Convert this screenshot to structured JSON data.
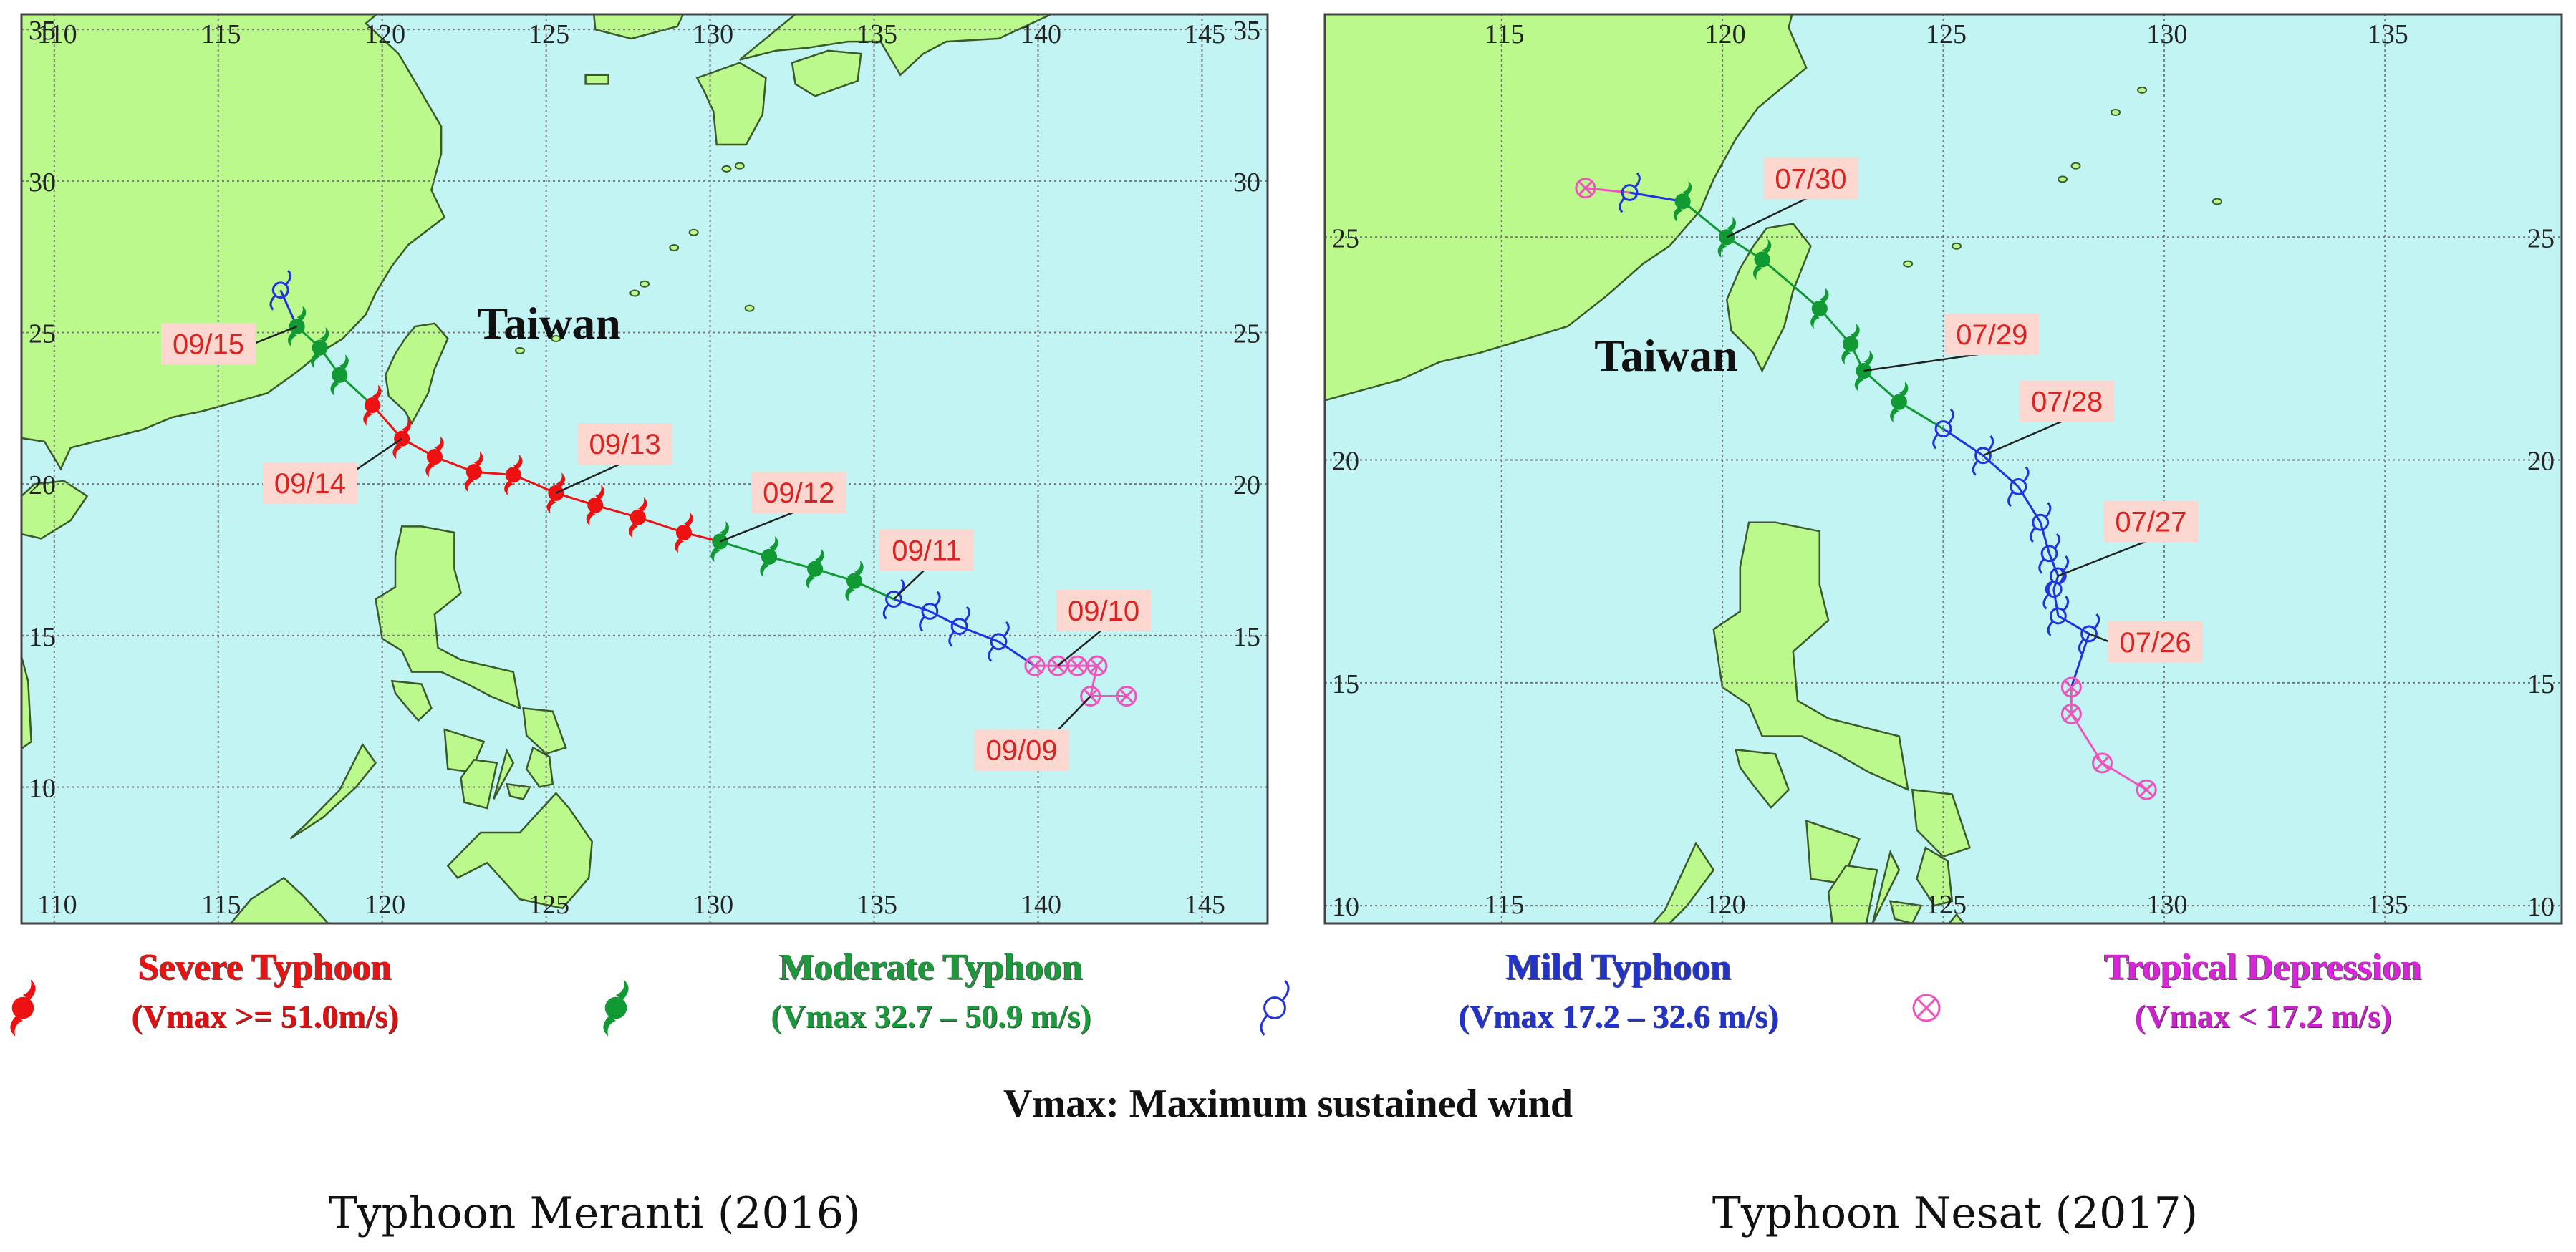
{
  "colors": {
    "sea": "#c2f4f4",
    "land": "#bbf98c",
    "coast": "#3a5a2a",
    "grid": "#777777",
    "severe": "#ee1111",
    "moderate": "#119933",
    "mild": "#2233dd",
    "depression": "#ee55bb",
    "date_label_bg": "#fbd7cf",
    "date_label_text": "#dd2222"
  },
  "legend": [
    {
      "key": "severe",
      "title": "Severe Typhoon",
      "subtitle": "(Vmax  >= 51.0m/s)",
      "title_color": "#ee1111",
      "sub_color": "#dd1111",
      "icon": "severe-typhoon-icon"
    },
    {
      "key": "moderate",
      "title": "Moderate Typhoon",
      "subtitle": "(Vmax  32.7 – 50.9 m/s)",
      "title_color": "#1a9a3a",
      "sub_color": "#1a9a3a",
      "icon": "moderate-typhoon-icon"
    },
    {
      "key": "mild",
      "title": "Mild Typhoon",
      "subtitle": "(Vmax  17.2 – 32.6 m/s)",
      "title_color": "#2233cc",
      "sub_color": "#2233cc",
      "icon": "mild-typhoon-icon"
    },
    {
      "key": "depression",
      "title": "Tropical Depression",
      "subtitle": "(Vmax  < 17.2 m/s)",
      "title_color": "#dd22dd",
      "sub_color": "#cc22cc",
      "icon": "tropical-depression-icon"
    }
  ],
  "note": "Vmax: Maximum sustained wind",
  "maps": [
    {
      "id": "meranti",
      "caption": "Typhoon Meranti (2016)",
      "place_label": "Taiwan",
      "lon_range": [
        109,
        147
      ],
      "lat_range": [
        5.5,
        35.5
      ],
      "lon_ticks": [
        110,
        115,
        120,
        125,
        130,
        135,
        140,
        145
      ],
      "lat_ticks": [
        10,
        15,
        20,
        25,
        30,
        35
      ],
      "tick_labels_left": [
        "10",
        "15",
        "20",
        "25",
        "30",
        "35"
      ],
      "tick_labels_right": [
        "15",
        "20",
        "25",
        "30",
        "35"
      ],
      "tick_labels_top": [
        "110",
        "115",
        "120",
        "125",
        "130",
        "135",
        "140",
        "145"
      ],
      "tick_labels_bottom": [
        "110",
        "115",
        "120",
        "125",
        "130",
        "135",
        "140",
        "145"
      ],
      "track": [
        {
          "lon": 142.7,
          "lat": 13.0,
          "cat": "depression"
        },
        {
          "lon": 141.6,
          "lat": 13.0,
          "cat": "depression"
        },
        {
          "lon": 141.8,
          "lat": 14.0,
          "cat": "depression"
        },
        {
          "lon": 141.2,
          "lat": 14.0,
          "cat": "depression"
        },
        {
          "lon": 140.6,
          "lat": 14.0,
          "cat": "depression"
        },
        {
          "lon": 139.9,
          "lat": 14.0,
          "cat": "depression"
        },
        {
          "lon": 138.8,
          "lat": 14.8,
          "cat": "mild"
        },
        {
          "lon": 137.6,
          "lat": 15.3,
          "cat": "mild"
        },
        {
          "lon": 136.7,
          "lat": 15.8,
          "cat": "mild"
        },
        {
          "lon": 135.6,
          "lat": 16.2,
          "cat": "mild"
        },
        {
          "lon": 134.4,
          "lat": 16.8,
          "cat": "moderate"
        },
        {
          "lon": 133.2,
          "lat": 17.2,
          "cat": "moderate"
        },
        {
          "lon": 131.8,
          "lat": 17.6,
          "cat": "moderate"
        },
        {
          "lon": 130.3,
          "lat": 18.1,
          "cat": "moderate"
        },
        {
          "lon": 129.2,
          "lat": 18.4,
          "cat": "severe"
        },
        {
          "lon": 127.8,
          "lat": 18.9,
          "cat": "severe"
        },
        {
          "lon": 126.5,
          "lat": 19.3,
          "cat": "severe"
        },
        {
          "lon": 125.3,
          "lat": 19.7,
          "cat": "severe"
        },
        {
          "lon": 124.0,
          "lat": 20.3,
          "cat": "severe"
        },
        {
          "lon": 122.8,
          "lat": 20.4,
          "cat": "severe"
        },
        {
          "lon": 121.6,
          "lat": 20.9,
          "cat": "severe"
        },
        {
          "lon": 120.6,
          "lat": 21.5,
          "cat": "severe"
        },
        {
          "lon": 119.7,
          "lat": 22.6,
          "cat": "severe"
        },
        {
          "lon": 118.7,
          "lat": 23.6,
          "cat": "moderate"
        },
        {
          "lon": 118.1,
          "lat": 24.5,
          "cat": "moderate"
        },
        {
          "lon": 117.4,
          "lat": 25.2,
          "cat": "moderate"
        },
        {
          "lon": 116.9,
          "lat": 26.4,
          "cat": "mild"
        }
      ],
      "date_labels": [
        {
          "text": "09/09",
          "lon": 139.5,
          "lat": 11.2,
          "anchor_lon": 141.6,
          "anchor_lat": 13.0
        },
        {
          "text": "09/10",
          "lon": 142.0,
          "lat": 15.8,
          "anchor_lon": 140.6,
          "anchor_lat": 14.0
        },
        {
          "text": "09/11",
          "lon": 136.6,
          "lat": 17.8,
          "anchor_lon": 135.6,
          "anchor_lat": 16.2
        },
        {
          "text": "09/12",
          "lon": 132.7,
          "lat": 19.7,
          "anchor_lon": 130.3,
          "anchor_lat": 18.1
        },
        {
          "text": "09/13",
          "lon": 127.4,
          "lat": 21.3,
          "anchor_lon": 125.3,
          "anchor_lat": 19.7
        },
        {
          "text": "09/14",
          "lon": 117.8,
          "lat": 20.0,
          "anchor_lon": 120.6,
          "anchor_lat": 21.5
        },
        {
          "text": "09/15",
          "lon": 114.7,
          "lat": 24.6,
          "anchor_lon": 117.4,
          "anchor_lat": 25.2
        }
      ]
    },
    {
      "id": "nesat",
      "caption": "Typhoon Nesat (2017)",
      "place_label": "Taiwan",
      "lon_range": [
        111,
        139
      ],
      "lat_range": [
        9.6,
        30.0
      ],
      "lon_ticks": [
        115,
        120,
        125,
        130,
        135
      ],
      "lat_ticks": [
        10,
        15,
        20,
        25
      ],
      "tick_labels_left": [
        "10",
        "15",
        "20",
        "25"
      ],
      "tick_labels_right": [
        "10",
        "15",
        "20",
        "25"
      ],
      "tick_labels_top": [
        "115",
        "120",
        "125",
        "130",
        "135"
      ],
      "tick_labels_bottom": [
        "115",
        "120",
        "125",
        "130",
        "135"
      ],
      "track": [
        {
          "lon": 129.6,
          "lat": 12.6,
          "cat": "depression"
        },
        {
          "lon": 128.6,
          "lat": 13.2,
          "cat": "depression"
        },
        {
          "lon": 127.9,
          "lat": 14.3,
          "cat": "depression"
        },
        {
          "lon": 127.9,
          "lat": 14.9,
          "cat": "depression"
        },
        {
          "lon": 128.3,
          "lat": 16.1,
          "cat": "mild"
        },
        {
          "lon": 127.6,
          "lat": 16.5,
          "cat": "mild"
        },
        {
          "lon": 127.5,
          "lat": 17.1,
          "cat": "mild"
        },
        {
          "lon": 127.6,
          "lat": 17.4,
          "cat": "mild"
        },
        {
          "lon": 127.4,
          "lat": 17.9,
          "cat": "mild"
        },
        {
          "lon": 127.2,
          "lat": 18.6,
          "cat": "mild"
        },
        {
          "lon": 126.7,
          "lat": 19.4,
          "cat": "mild"
        },
        {
          "lon": 125.9,
          "lat": 20.1,
          "cat": "mild"
        },
        {
          "lon": 125.0,
          "lat": 20.7,
          "cat": "mild"
        },
        {
          "lon": 124.0,
          "lat": 21.3,
          "cat": "moderate"
        },
        {
          "lon": 123.2,
          "lat": 22.0,
          "cat": "moderate"
        },
        {
          "lon": 122.9,
          "lat": 22.6,
          "cat": "moderate"
        },
        {
          "lon": 122.2,
          "lat": 23.4,
          "cat": "moderate"
        },
        {
          "lon": 120.9,
          "lat": 24.5,
          "cat": "moderate"
        },
        {
          "lon": 120.1,
          "lat": 25.0,
          "cat": "moderate"
        },
        {
          "lon": 119.1,
          "lat": 25.8,
          "cat": "moderate"
        },
        {
          "lon": 117.9,
          "lat": 26.0,
          "cat": "mild"
        },
        {
          "lon": 116.9,
          "lat": 26.1,
          "cat": "depression"
        }
      ],
      "date_labels": [
        {
          "text": "07/26",
          "lon": 129.8,
          "lat": 15.9,
          "anchor_lon": 128.3,
          "anchor_lat": 16.1
        },
        {
          "text": "07/27",
          "lon": 129.7,
          "lat": 18.6,
          "anchor_lon": 127.6,
          "anchor_lat": 17.4
        },
        {
          "text": "07/28",
          "lon": 127.8,
          "lat": 21.3,
          "anchor_lon": 125.9,
          "anchor_lat": 20.1
        },
        {
          "text": "07/29",
          "lon": 126.1,
          "lat": 22.8,
          "anchor_lon": 123.2,
          "anchor_lat": 22.0
        },
        {
          "text": "07/30",
          "lon": 122.0,
          "lat": 26.3,
          "anchor_lon": 120.1,
          "anchor_lat": 25.0
        }
      ]
    }
  ]
}
